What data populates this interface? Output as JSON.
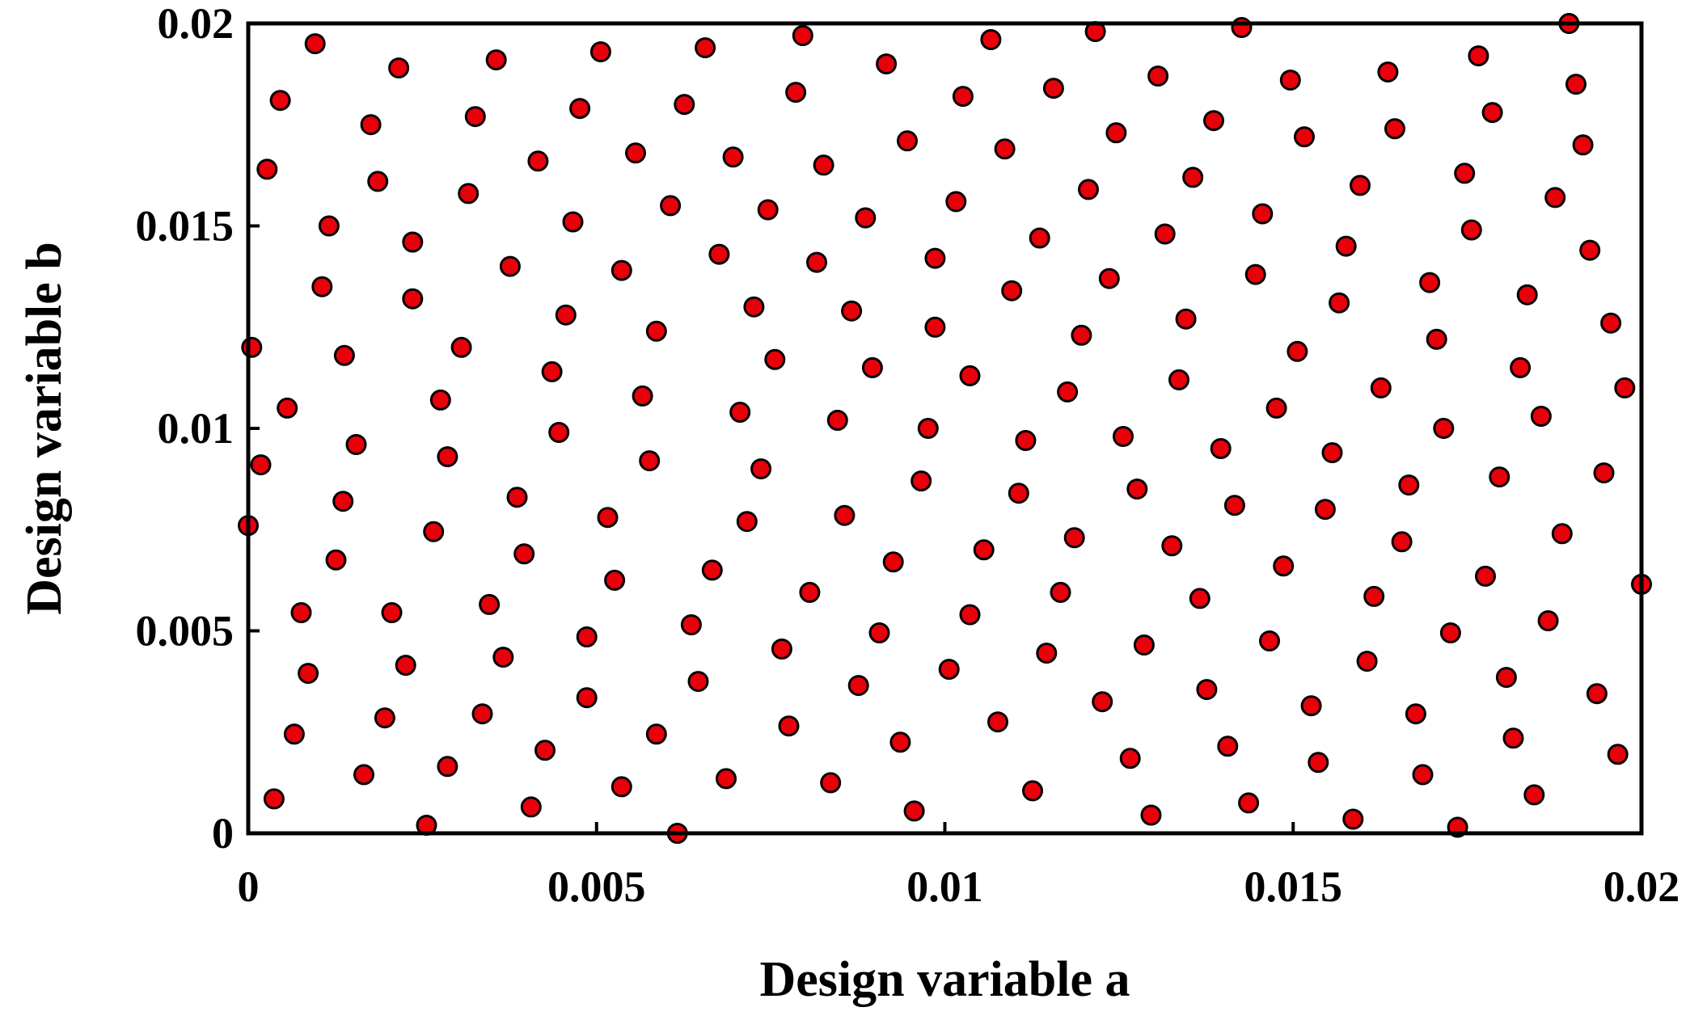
{
  "chart_data": {
    "type": "scatter",
    "title": "",
    "xlabel": "Design variable a",
    "ylabel": "Design variable b",
    "xlim": [
      0,
      0.02
    ],
    "ylim": [
      0,
      0.02
    ],
    "x_ticks": [
      "0",
      "0.005",
      "0.01",
      "0.015",
      "0.02"
    ],
    "y_ticks": [
      "0",
      "0.005",
      "0.01",
      "0.015",
      "0.02"
    ],
    "grid": false,
    "legend": "none",
    "marker_color": "#e8000b",
    "marker_edge_color": "#000000",
    "series": [
      {
        "points": [
          [
            0.0,
            0.0076
          ],
          [
            5e-05,
            0.012
          ],
          [
            0.00018,
            0.0091
          ],
          [
            0.00027,
            0.0164
          ],
          [
            0.00037,
            0.00085
          ],
          [
            0.00046,
            0.0181
          ],
          [
            0.00056,
            0.0105
          ],
          [
            0.00066,
            0.00245
          ],
          [
            0.00076,
            0.00545
          ],
          [
            0.00086,
            0.00395
          ],
          [
            0.00096,
            0.0195
          ],
          [
            0.00106,
            0.0135
          ],
          [
            0.00116,
            0.015
          ],
          [
            0.00126,
            0.00675
          ],
          [
            0.00136,
            0.0082
          ],
          [
            0.00138,
            0.0118
          ],
          [
            0.00155,
            0.0096
          ],
          [
            0.00166,
            0.00145
          ],
          [
            0.00176,
            0.0175
          ],
          [
            0.00186,
            0.0161
          ],
          [
            0.00196,
            0.00285
          ],
          [
            0.00206,
            0.00545
          ],
          [
            0.00216,
            0.0189
          ],
          [
            0.00226,
            0.00415
          ],
          [
            0.00236,
            0.0146
          ],
          [
            0.00236,
            0.0132
          ],
          [
            0.00256,
            0.0002
          ],
          [
            0.00266,
            0.00745
          ],
          [
            0.00276,
            0.0107
          ],
          [
            0.00286,
            0.00165
          ],
          [
            0.00286,
            0.0093
          ],
          [
            0.00306,
            0.012
          ],
          [
            0.00316,
            0.0158
          ],
          [
            0.00326,
            0.0177
          ],
          [
            0.00336,
            0.00295
          ],
          [
            0.00346,
            0.00565
          ],
          [
            0.00356,
            0.0191
          ],
          [
            0.00366,
            0.00435
          ],
          [
            0.00376,
            0.014
          ],
          [
            0.00386,
            0.0083
          ],
          [
            0.00396,
            0.0069
          ],
          [
            0.00406,
            0.00065
          ],
          [
            0.00416,
            0.0166
          ],
          [
            0.00426,
            0.00205
          ],
          [
            0.00436,
            0.0114
          ],
          [
            0.00446,
            0.0099
          ],
          [
            0.00456,
            0.0128
          ],
          [
            0.00466,
            0.0151
          ],
          [
            0.00476,
            0.0179
          ],
          [
            0.00486,
            0.00335
          ],
          [
            0.00486,
            0.00485
          ],
          [
            0.00506,
            0.0193
          ],
          [
            0.00516,
            0.0078
          ],
          [
            0.00526,
            0.00625
          ],
          [
            0.00536,
            0.0139
          ],
          [
            0.00536,
            0.00115
          ],
          [
            0.00556,
            0.0168
          ],
          [
            0.00566,
            0.0108
          ],
          [
            0.00576,
            0.0092
          ],
          [
            0.00586,
            0.0124
          ],
          [
            0.00586,
            0.00245
          ],
          [
            0.00606,
            0.0155
          ],
          [
            0.00616,
            0.0
          ],
          [
            0.00626,
            0.018
          ],
          [
            0.00636,
            0.00515
          ],
          [
            0.00646,
            0.00375
          ],
          [
            0.00656,
            0.0194
          ],
          [
            0.00666,
            0.0065
          ],
          [
            0.00676,
            0.0143
          ],
          [
            0.00686,
            0.00135
          ],
          [
            0.00696,
            0.0167
          ],
          [
            0.00706,
            0.0104
          ],
          [
            0.00716,
            0.0077
          ],
          [
            0.00726,
            0.013
          ],
          [
            0.00736,
            0.009
          ],
          [
            0.00746,
            0.0154
          ],
          [
            0.00756,
            0.0117
          ],
          [
            0.00766,
            0.00455
          ],
          [
            0.00776,
            0.00265
          ],
          [
            0.00786,
            0.0183
          ],
          [
            0.00796,
            0.0197
          ],
          [
            0.00806,
            0.00595
          ],
          [
            0.00816,
            0.0141
          ],
          [
            0.00826,
            0.0165
          ],
          [
            0.00836,
            0.00125
          ],
          [
            0.00846,
            0.0102
          ],
          [
            0.00856,
            0.00785
          ],
          [
            0.00866,
            0.0129
          ],
          [
            0.00876,
            0.00365
          ],
          [
            0.00886,
            0.0152
          ],
          [
            0.00896,
            0.0115
          ],
          [
            0.00906,
            0.00495
          ],
          [
            0.00916,
            0.019
          ],
          [
            0.00926,
            0.0067
          ],
          [
            0.00936,
            0.00225
          ],
          [
            0.00946,
            0.0171
          ],
          [
            0.00956,
            0.00055
          ],
          [
            0.00966,
            0.0087
          ],
          [
            0.00976,
            0.01
          ],
          [
            0.00986,
            0.0142
          ],
          [
            0.00986,
            0.0125
          ],
          [
            0.01006,
            0.00405
          ],
          [
            0.01016,
            0.0156
          ],
          [
            0.01026,
            0.0182
          ],
          [
            0.01036,
            0.0113
          ],
          [
            0.01036,
            0.0054
          ],
          [
            0.01056,
            0.007
          ],
          [
            0.01066,
            0.0196
          ],
          [
            0.01076,
            0.00275
          ],
          [
            0.01086,
            0.0169
          ],
          [
            0.01096,
            0.0134
          ],
          [
            0.01106,
            0.0084
          ],
          [
            0.01116,
            0.0097
          ],
          [
            0.01126,
            0.00105
          ],
          [
            0.01136,
            0.0147
          ],
          [
            0.01146,
            0.00445
          ],
          [
            0.01156,
            0.0184
          ],
          [
            0.01166,
            0.00595
          ],
          [
            0.01176,
            0.0109
          ],
          [
            0.01186,
            0.0073
          ],
          [
            0.01196,
            0.0123
          ],
          [
            0.01206,
            0.0159
          ],
          [
            0.01216,
            0.0198
          ],
          [
            0.01226,
            0.00325
          ],
          [
            0.01236,
            0.0137
          ],
          [
            0.01246,
            0.0173
          ],
          [
            0.01256,
            0.0098
          ],
          [
            0.01266,
            0.00185
          ],
          [
            0.01276,
            0.0085
          ],
          [
            0.01286,
            0.00465
          ],
          [
            0.01296,
            0.00045
          ],
          [
            0.01306,
            0.0187
          ],
          [
            0.01316,
            0.0148
          ],
          [
            0.01326,
            0.0071
          ],
          [
            0.01336,
            0.0112
          ],
          [
            0.01346,
            0.0127
          ],
          [
            0.01356,
            0.0162
          ],
          [
            0.01366,
            0.0058
          ],
          [
            0.01376,
            0.00355
          ],
          [
            0.01386,
            0.0176
          ],
          [
            0.01396,
            0.0095
          ],
          [
            0.01406,
            0.00215
          ],
          [
            0.01416,
            0.0081
          ],
          [
            0.01426,
            0.0199
          ],
          [
            0.01436,
            0.00075
          ],
          [
            0.01446,
            0.0138
          ],
          [
            0.01456,
            0.0153
          ],
          [
            0.01466,
            0.00475
          ],
          [
            0.01476,
            0.0105
          ],
          [
            0.01486,
            0.0066
          ],
          [
            0.01496,
            0.0186
          ],
          [
            0.01506,
            0.0119
          ],
          [
            0.01516,
            0.0172
          ],
          [
            0.01526,
            0.00315
          ],
          [
            0.01536,
            0.00175
          ],
          [
            0.01546,
            0.008
          ],
          [
            0.01556,
            0.0094
          ],
          [
            0.01566,
            0.0131
          ],
          [
            0.01576,
            0.0145
          ],
          [
            0.01586,
            0.00035
          ],
          [
            0.01596,
            0.016
          ],
          [
            0.01606,
            0.00425
          ],
          [
            0.01616,
            0.00585
          ],
          [
            0.01626,
            0.011
          ],
          [
            0.01636,
            0.0188
          ],
          [
            0.01646,
            0.0174
          ],
          [
            0.01656,
            0.0072
          ],
          [
            0.01666,
            0.0086
          ],
          [
            0.01676,
            0.00295
          ],
          [
            0.01686,
            0.00145
          ],
          [
            0.01696,
            0.0136
          ],
          [
            0.01706,
            0.0122
          ],
          [
            0.01716,
            0.01
          ],
          [
            0.01726,
            0.00495
          ],
          [
            0.01736,
            0.00015
          ],
          [
            0.01746,
            0.0163
          ],
          [
            0.01756,
            0.0149
          ],
          [
            0.01766,
            0.0192
          ],
          [
            0.01776,
            0.00635
          ],
          [
            0.01786,
            0.0178
          ],
          [
            0.01796,
            0.0088
          ],
          [
            0.01806,
            0.00385
          ],
          [
            0.01816,
            0.00235
          ],
          [
            0.01826,
            0.0115
          ],
          [
            0.01836,
            0.0133
          ],
          [
            0.01846,
            0.00095
          ],
          [
            0.01856,
            0.0103
          ],
          [
            0.01866,
            0.00525
          ],
          [
            0.01876,
            0.0157
          ],
          [
            0.01886,
            0.0074
          ],
          [
            0.01896,
            0.02
          ],
          [
            0.01906,
            0.0185
          ],
          [
            0.01916,
            0.017
          ],
          [
            0.01926,
            0.0144
          ],
          [
            0.01936,
            0.00345
          ],
          [
            0.01946,
            0.0089
          ],
          [
            0.01956,
            0.0126
          ],
          [
            0.01966,
            0.00195
          ],
          [
            0.01976,
            0.011
          ],
          [
            0.02,
            0.00615
          ]
        ]
      }
    ]
  }
}
